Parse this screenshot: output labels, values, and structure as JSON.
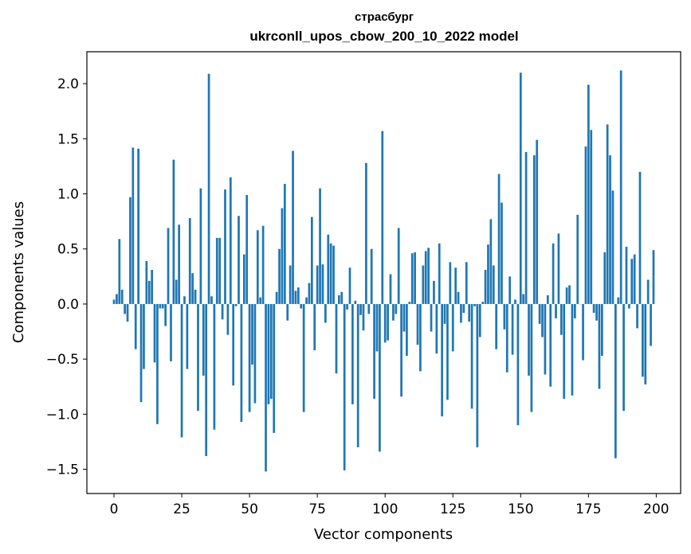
{
  "chart_data": {
    "type": "bar",
    "title": "страсбург",
    "subtitle": "ukrconll_upos_cbow_200_10_2022 model",
    "xlabel": "Vector components",
    "ylabel": "Components values",
    "xlim": [
      -10,
      209
    ],
    "ylim": [
      -1.72,
      2.29
    ],
    "xticks": [
      0,
      25,
      50,
      75,
      100,
      125,
      150,
      175,
      200
    ],
    "yticks": [
      -1.5,
      -1.0,
      -0.5,
      0.0,
      0.5,
      1.0,
      1.5,
      2.0
    ],
    "ytick_labels": [
      "−1.5",
      "−1.0",
      "−0.5",
      "0.0",
      "0.5",
      "1.0",
      "1.5",
      "2.0"
    ],
    "bar_color": "#1f77b4",
    "x": [
      0,
      1,
      2,
      3,
      4,
      5,
      6,
      7,
      8,
      9,
      10,
      11,
      12,
      13,
      14,
      15,
      16,
      17,
      18,
      19,
      20,
      21,
      22,
      23,
      24,
      25,
      26,
      27,
      28,
      29,
      30,
      31,
      32,
      33,
      34,
      35,
      36,
      37,
      38,
      39,
      40,
      41,
      42,
      43,
      44,
      45,
      46,
      47,
      48,
      49,
      50,
      51,
      52,
      53,
      54,
      55,
      56,
      57,
      58,
      59,
      60,
      61,
      62,
      63,
      64,
      65,
      66,
      67,
      68,
      69,
      70,
      71,
      72,
      73,
      74,
      75,
      76,
      77,
      78,
      79,
      80,
      81,
      82,
      83,
      84,
      85,
      86,
      87,
      88,
      89,
      90,
      91,
      92,
      93,
      94,
      95,
      96,
      97,
      98,
      99,
      100,
      101,
      102,
      103,
      104,
      105,
      106,
      107,
      108,
      109,
      110,
      111,
      112,
      113,
      114,
      115,
      116,
      117,
      118,
      119,
      120,
      121,
      122,
      123,
      124,
      125,
      126,
      127,
      128,
      129,
      130,
      131,
      132,
      133,
      134,
      135,
      136,
      137,
      138,
      139,
      140,
      141,
      142,
      143,
      144,
      145,
      146,
      147,
      148,
      149,
      150,
      151,
      152,
      153,
      154,
      155,
      156,
      157,
      158,
      159,
      160,
      161,
      162,
      163,
      164,
      165,
      166,
      167,
      168,
      169,
      170,
      171,
      172,
      173,
      174,
      175,
      176,
      177,
      178,
      179,
      180,
      181,
      182,
      183,
      184,
      185,
      186,
      187,
      188,
      189,
      190,
      191,
      192,
      193,
      194,
      195,
      196,
      197,
      198,
      199
    ],
    "values": [
      0.04,
      0.09,
      0.59,
      0.13,
      -0.09,
      -0.16,
      0.97,
      1.42,
      -0.41,
      1.41,
      -0.89,
      -0.59,
      0.39,
      0.21,
      0.31,
      -0.53,
      -1.09,
      -0.04,
      -0.04,
      -0.2,
      0.69,
      -0.52,
      1.31,
      0.22,
      0.72,
      -1.21,
      0.07,
      -0.59,
      0.78,
      0.28,
      0.13,
      -0.97,
      1.05,
      -0.65,
      -1.38,
      2.09,
      0.07,
      -1.14,
      0.6,
      0.6,
      -0.14,
      1.04,
      -0.28,
      1.15,
      -0.74,
      -0.02,
      0.8,
      -1.07,
      0.45,
      0.99,
      -0.98,
      -0.55,
      -0.9,
      0.67,
      0.06,
      0.71,
      -1.52,
      -0.91,
      -0.86,
      -1.17,
      0.11,
      0.5,
      0.87,
      1.09,
      -0.15,
      0.35,
      1.39,
      0.12,
      0.15,
      -0.04,
      -0.98,
      0.06,
      0.19,
      0.79,
      -0.42,
      0.35,
      1.05,
      0.36,
      -0.17,
      0.63,
      0.55,
      0.53,
      -0.63,
      0.08,
      0.11,
      -1.51,
      -0.05,
      0.33,
      -0.91,
      0.03,
      -1.3,
      -0.1,
      -0.24,
      1.28,
      -0.09,
      0.5,
      -0.86,
      -0.43,
      -1.34,
      1.57,
      -0.35,
      -0.33,
      0.27,
      -0.15,
      -0.09,
      0.69,
      -0.84,
      -0.25,
      -0.47,
      0.02,
      0.46,
      0.47,
      -0.37,
      -0.61,
      0.35,
      0.48,
      0.51,
      -0.25,
      0.21,
      -0.45,
      0.55,
      -1.02,
      -0.18,
      -0.87,
      0.38,
      -0.43,
      0.33,
      0.11,
      -0.17,
      -0.08,
      0.38,
      -0.16,
      -0.95,
      -0.02,
      -1.3,
      -0.3,
      0.02,
      0.31,
      0.54,
      0.77,
      0.35,
      -0.41,
      1.18,
      0.92,
      -0.23,
      -0.62,
      0.25,
      -0.46,
      0.04,
      -1.1,
      2.1,
      0.09,
      1.38,
      -0.65,
      -0.98,
      1.35,
      1.49,
      -0.18,
      -0.3,
      -0.64,
      0.08,
      -0.75,
      0.55,
      -0.13,
      0.64,
      -0.28,
      -0.86,
      0.15,
      0.17,
      -0.83,
      -0.13,
      0.81,
      0.0,
      -0.51,
      1.43,
      1.99,
      1.58,
      -0.08,
      -0.15,
      -0.77,
      -0.47,
      0.47,
      1.63,
      1.35,
      1.03,
      -1.4,
      0.06,
      2.12,
      -0.97,
      0.52,
      -0.04,
      0.41,
      0.45,
      -0.22,
      1.2,
      -0.66,
      -0.73,
      0.22,
      -0.38,
      0.49
    ]
  }
}
